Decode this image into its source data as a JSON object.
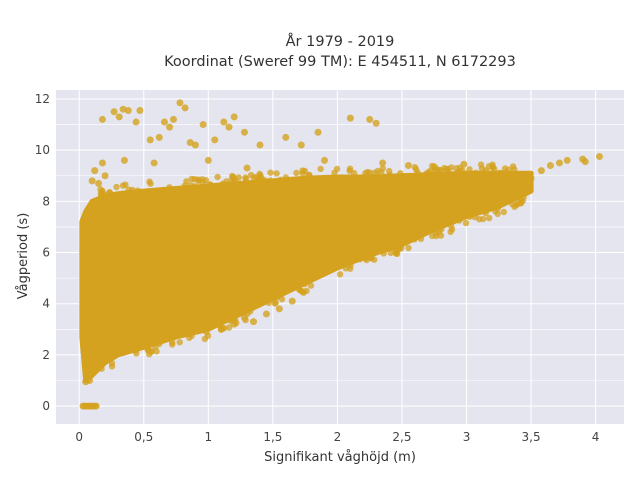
{
  "chart_data": {
    "type": "scatter",
    "title_line1": "År 1979 - 2019",
    "title_line2": "Koordinat (Sweref 99 TM): E 454511, N 6172293",
    "xlabel": "Signifikant våghöjd (m)",
    "ylabel": "Vågperiod (s)",
    "xlim": [
      -0.18,
      4.22
    ],
    "ylim": [
      -0.7,
      12.35
    ],
    "xticks": [
      0,
      0.5,
      1,
      1.5,
      2,
      2.5,
      3,
      3.5,
      4
    ],
    "xtick_labels": [
      "0",
      "0,5",
      "1",
      "1,5",
      "2",
      "2,5",
      "3",
      "3,5",
      "4"
    ],
    "yticks": [
      0,
      2,
      4,
      6,
      8,
      10,
      12
    ],
    "ytick_labels": [
      "0",
      "2",
      "4",
      "6",
      "8",
      "10",
      "12"
    ],
    "grid": true,
    "legend": "none",
    "colors": {
      "marker": "#D4A21E",
      "plot_background": "#E5E5F0",
      "grid": "#ffffff"
    },
    "dense_region": {
      "description_points_hs": [
        0.02,
        0.05,
        0.1,
        0.2,
        0.3,
        0.5,
        0.75,
        1.0,
        1.25,
        1.5,
        1.75,
        2.0,
        2.25,
        2.5,
        2.75,
        3.0,
        3.25,
        3.5
      ],
      "tp_lower": [
        2.7,
        1.0,
        1.2,
        1.7,
        2.0,
        2.3,
        2.7,
        3.0,
        3.6,
        4.2,
        4.8,
        5.4,
        5.9,
        6.3,
        6.9,
        7.4,
        7.8,
        8.4
      ],
      "tp_upper": [
        7.2,
        7.6,
        8.0,
        8.2,
        8.3,
        8.4,
        8.5,
        8.6,
        8.7,
        8.8,
        8.9,
        8.95,
        8.95,
        9.0,
        9.05,
        9.1,
        9.1,
        9.1
      ]
    },
    "zero_period_points": [
      {
        "x": 0.03,
        "y": 0
      },
      {
        "x": 0.05,
        "y": 0
      },
      {
        "x": 0.07,
        "y": 0
      },
      {
        "x": 0.09,
        "y": 0
      },
      {
        "x": 0.11,
        "y": 0
      },
      {
        "x": 0.13,
        "y": 0
      }
    ],
    "outlier_points": [
      {
        "x": 0.18,
        "y": 11.2
      },
      {
        "x": 0.27,
        "y": 11.5
      },
      {
        "x": 0.31,
        "y": 11.3
      },
      {
        "x": 0.34,
        "y": 11.6
      },
      {
        "x": 0.38,
        "y": 11.55
      },
      {
        "x": 0.44,
        "y": 11.1
      },
      {
        "x": 0.47,
        "y": 11.55
      },
      {
        "x": 0.55,
        "y": 10.4
      },
      {
        "x": 0.62,
        "y": 10.5
      },
      {
        "x": 0.66,
        "y": 11.1
      },
      {
        "x": 0.7,
        "y": 10.9
      },
      {
        "x": 0.73,
        "y": 11.2
      },
      {
        "x": 0.78,
        "y": 11.85
      },
      {
        "x": 0.82,
        "y": 11.65
      },
      {
        "x": 0.86,
        "y": 10.3
      },
      {
        "x": 0.9,
        "y": 10.2
      },
      {
        "x": 0.96,
        "y": 11.0
      },
      {
        "x": 1.05,
        "y": 10.4
      },
      {
        "x": 1.12,
        "y": 11.1
      },
      {
        "x": 1.16,
        "y": 10.9
      },
      {
        "x": 1.2,
        "y": 11.3
      },
      {
        "x": 1.28,
        "y": 10.7
      },
      {
        "x": 1.4,
        "y": 10.2
      },
      {
        "x": 1.6,
        "y": 10.5
      },
      {
        "x": 1.72,
        "y": 10.2
      },
      {
        "x": 1.85,
        "y": 10.7
      },
      {
        "x": 2.1,
        "y": 11.25
      },
      {
        "x": 2.25,
        "y": 11.2
      },
      {
        "x": 2.3,
        "y": 11.05
      },
      {
        "x": 0.12,
        "y": 9.2
      },
      {
        "x": 0.18,
        "y": 9.5
      },
      {
        "x": 0.2,
        "y": 9.0
      },
      {
        "x": 0.15,
        "y": 8.7
      },
      {
        "x": 0.1,
        "y": 8.8
      },
      {
        "x": 0.35,
        "y": 9.6
      },
      {
        "x": 0.58,
        "y": 9.5
      },
      {
        "x": 1.0,
        "y": 9.6
      },
      {
        "x": 1.3,
        "y": 9.3
      },
      {
        "x": 1.9,
        "y": 9.6
      },
      {
        "x": 2.35,
        "y": 9.5
      },
      {
        "x": 2.55,
        "y": 9.4
      },
      {
        "x": 2.75,
        "y": 9.35
      },
      {
        "x": 2.98,
        "y": 9.45
      },
      {
        "x": 3.15,
        "y": 9.2
      },
      {
        "x": 3.3,
        "y": 9.1
      },
      {
        "x": 3.4,
        "y": 9.05
      },
      {
        "x": 3.5,
        "y": 8.9
      },
      {
        "x": 3.58,
        "y": 9.2
      },
      {
        "x": 3.65,
        "y": 9.4
      },
      {
        "x": 3.72,
        "y": 9.5
      },
      {
        "x": 3.78,
        "y": 9.6
      },
      {
        "x": 3.9,
        "y": 9.65
      },
      {
        "x": 3.92,
        "y": 9.55
      },
      {
        "x": 4.03,
        "y": 9.75
      },
      {
        "x": 2.95,
        "y": 8.0
      },
      {
        "x": 3.1,
        "y": 7.95
      },
      {
        "x": 3.3,
        "y": 8.0
      },
      {
        "x": 2.6,
        "y": 7.6
      },
      {
        "x": 2.8,
        "y": 7.9
      },
      {
        "x": 1.2,
        "y": 3.2
      },
      {
        "x": 1.35,
        "y": 3.3
      },
      {
        "x": 1.45,
        "y": 3.6
      },
      {
        "x": 1.55,
        "y": 3.8
      },
      {
        "x": 1.65,
        "y": 4.1
      },
      {
        "x": 1.1,
        "y": 3.0
      },
      {
        "x": 0.95,
        "y": 3.1
      },
      {
        "x": 1.28,
        "y": 3.45
      },
      {
        "x": 0.05,
        "y": 0.95
      },
      {
        "x": 0.08,
        "y": 1.0
      }
    ]
  }
}
